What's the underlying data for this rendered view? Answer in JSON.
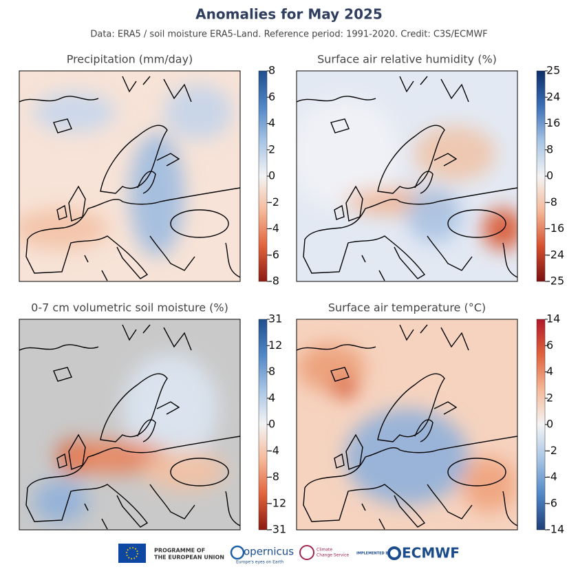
{
  "header": {
    "title": "Anomalies for May 2025",
    "subtitle": "Data: ERA5 / soil moisture ERA5-Land.  Reference period: 1991-2020.  Credit: C3S/ECMWF"
  },
  "panels": [
    {
      "title": "Precipitation (mm/day)",
      "colorbar": [
        8,
        6,
        4,
        2,
        0,
        -2,
        -4,
        -6,
        -8
      ]
    },
    {
      "title": "Surface air relative humidity (%)",
      "colorbar": [
        25,
        24,
        16,
        8,
        0,
        -8,
        -16,
        -24,
        -25
      ]
    },
    {
      "title": "0-7 cm volumetric soil moisture (%)",
      "colorbar": [
        31,
        12,
        8,
        4,
        0,
        -4,
        -8,
        -12,
        -31
      ]
    },
    {
      "title": "Surface air temperature (°C)",
      "colorbar": [
        14,
        6,
        4,
        2,
        0,
        -2,
        -4,
        -6,
        -14
      ]
    }
  ],
  "footer": {
    "eu": [
      "PROGRAMME OF",
      "THE EUROPEAN UNION"
    ],
    "copernicus": "opernicus",
    "copernicus_tagline": "Europe's eyes on Earth",
    "c3s": [
      "Climate",
      "Change Service"
    ],
    "implemented": "IMPLEMENTED BY",
    "ecmwf": "ECMWF"
  }
}
